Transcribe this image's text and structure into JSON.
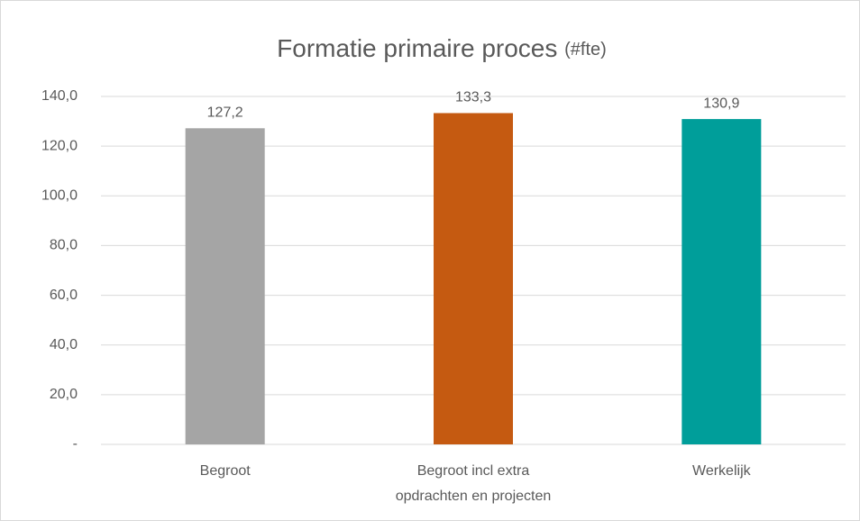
{
  "chart_data": {
    "type": "bar",
    "title": "Formatie primaire proces",
    "title_unit": "(#fte)",
    "categories": [
      "Begroot",
      "Begroot incl extra\nopdrachten en projecten",
      "Werkelijk"
    ],
    "values": [
      127.2,
      133.3,
      130.9
    ],
    "value_labels": [
      "127,2",
      "133,3",
      "130,9"
    ],
    "colors": [
      "#a5a5a5",
      "#c55a11",
      "#009e9a"
    ],
    "ylim": [
      0,
      140
    ],
    "yticks": [
      {
        "value": 0,
        "label": "-"
      },
      {
        "value": 20,
        "label": "20,0"
      },
      {
        "value": 40,
        "label": "40,0"
      },
      {
        "value": 60,
        "label": "60,0"
      },
      {
        "value": 80,
        "label": "80,0"
      },
      {
        "value": 100,
        "label": "100,0"
      },
      {
        "value": 120,
        "label": "120,0"
      },
      {
        "value": 140,
        "label": "140,0"
      }
    ],
    "grid": true
  }
}
